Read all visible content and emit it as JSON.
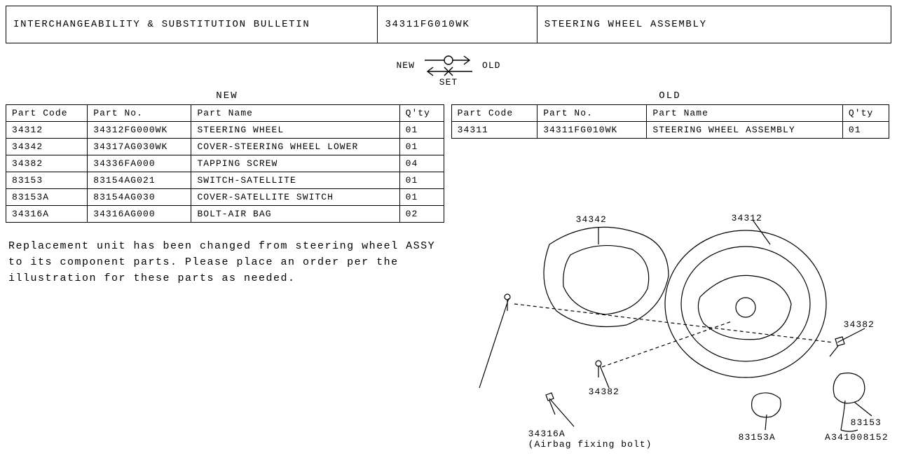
{
  "header": {
    "bulletin": "INTERCHANGEABILITY & SUBSTITUTION BULLETIN",
    "part_no": "34311FG010WK",
    "part_name": "STEERING WHEEL ASSEMBLY"
  },
  "arrows": {
    "new": "NEW",
    "old": "OLD",
    "set": "SET"
  },
  "sections": {
    "new_label": "NEW",
    "old_label": "OLD"
  },
  "columns": {
    "code": "Part Code",
    "no": "Part No.",
    "name": "Part Name",
    "qty": "Q'ty"
  },
  "new_parts": [
    {
      "code": "34312",
      "no": "34312FG000WK",
      "name": "STEERING WHEEL",
      "qty": "01"
    },
    {
      "code": "34342",
      "no": "34317AG030WK",
      "name": "COVER-STEERING WHEEL LOWER",
      "qty": "01"
    },
    {
      "code": "34382",
      "no": "34336FA000",
      "name": "TAPPING SCREW",
      "qty": "04"
    },
    {
      "code": "83153",
      "no": "83154AG021",
      "name": "SWITCH-SATELLITE",
      "qty": "01"
    },
    {
      "code": "83153A",
      "no": "83154AG030",
      "name": "COVER-SATELLITE SWITCH",
      "qty": "01"
    },
    {
      "code": "34316A",
      "no": "34316AG000",
      "name": "BOLT-AIR BAG",
      "qty": "02"
    }
  ],
  "old_parts": [
    {
      "code": "34311",
      "no": "34311FG010WK",
      "name": "STEERING WHEEL ASSEMBLY",
      "qty": "01"
    }
  ],
  "note": "Replacement unit has been changed from steering wheel ASSY to its component parts. Please place an order per the illustration for these parts as needed.",
  "callouts": {
    "c34342": "34342",
    "c34312": "34312",
    "c34382a": "34382",
    "c34382b": "34382",
    "c34316a_line1": "34316A",
    "c34316a_line2": "(Airbag fixing bolt)",
    "c83153a": "83153A",
    "c83153": "83153"
  },
  "doc_id": "A341008152",
  "style": {
    "stroke": "#000000",
    "stroke_width": 1.2,
    "font": "Courier New",
    "background": "#ffffff"
  }
}
